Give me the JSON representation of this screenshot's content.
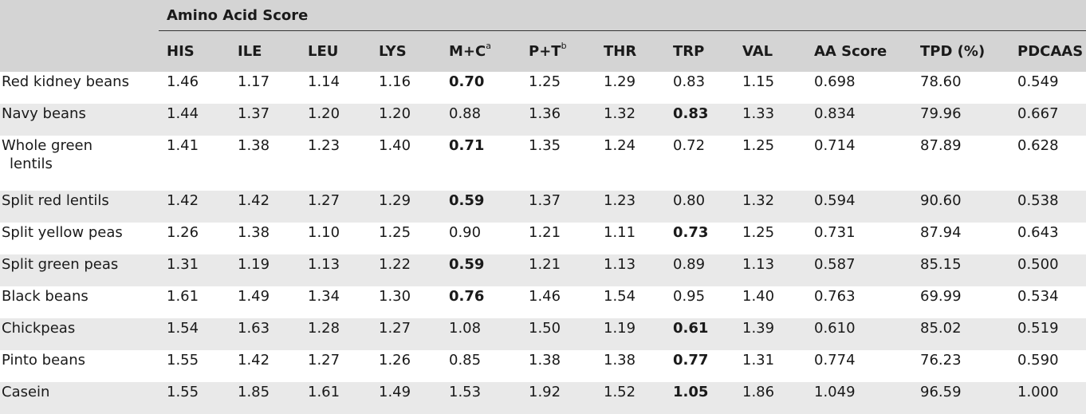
{
  "table": {
    "group_header": "Amino Acid Score",
    "columns": [
      {
        "label": "HIS",
        "sup": ""
      },
      {
        "label": "ILE",
        "sup": ""
      },
      {
        "label": "LEU",
        "sup": ""
      },
      {
        "label": "LYS",
        "sup": ""
      },
      {
        "label": "M+C",
        "sup": "a"
      },
      {
        "label": "P+T",
        "sup": "b"
      },
      {
        "label": "THR",
        "sup": ""
      },
      {
        "label": "TRP",
        "sup": ""
      },
      {
        "label": "VAL",
        "sup": ""
      },
      {
        "label": "AA Score",
        "sup": ""
      },
      {
        "label": "TPD (%)",
        "sup": ""
      },
      {
        "label": "PDCAAS",
        "sup": ""
      }
    ],
    "rows": [
      {
        "label": "Red kidney beans",
        "label2": "",
        "values": [
          "1.46",
          "1.17",
          "1.14",
          "1.16",
          "0.70",
          "1.25",
          "1.29",
          "0.83",
          "1.15",
          "0.698",
          "78.60",
          "0.549"
        ],
        "bold": [
          4
        ]
      },
      {
        "label": "Navy beans",
        "label2": "",
        "values": [
          "1.44",
          "1.37",
          "1.20",
          "1.20",
          "0.88",
          "1.36",
          "1.32",
          "0.83",
          "1.33",
          "0.834",
          "79.96",
          "0.667"
        ],
        "bold": [
          7
        ]
      },
      {
        "label": "Whole green",
        "label2": "lentils",
        "values": [
          "1.41",
          "1.38",
          "1.23",
          "1.40",
          "0.71",
          "1.35",
          "1.24",
          "0.72",
          "1.25",
          "0.714",
          "87.89",
          "0.628"
        ],
        "bold": [
          4
        ]
      },
      {
        "label": "Split red lentils",
        "label2": "",
        "values": [
          "1.42",
          "1.42",
          "1.27",
          "1.29",
          "0.59",
          "1.37",
          "1.23",
          "0.80",
          "1.32",
          "0.594",
          "90.60",
          "0.538"
        ],
        "bold": [
          4
        ]
      },
      {
        "label": "Split yellow peas",
        "label2": "",
        "values": [
          "1.26",
          "1.38",
          "1.10",
          "1.25",
          "0.90",
          "1.21",
          "1.11",
          "0.73",
          "1.25",
          "0.731",
          "87.94",
          "0.643"
        ],
        "bold": [
          7
        ]
      },
      {
        "label": "Split green peas",
        "label2": "",
        "values": [
          "1.31",
          "1.19",
          "1.13",
          "1.22",
          "0.59",
          "1.21",
          "1.13",
          "0.89",
          "1.13",
          "0.587",
          "85.15",
          "0.500"
        ],
        "bold": [
          4
        ]
      },
      {
        "label": "Black beans",
        "label2": "",
        "values": [
          "1.61",
          "1.49",
          "1.34",
          "1.30",
          "0.76",
          "1.46",
          "1.54",
          "0.95",
          "1.40",
          "0.763",
          "69.99",
          "0.534"
        ],
        "bold": [
          4
        ]
      },
      {
        "label": "Chickpeas",
        "label2": "",
        "values": [
          "1.54",
          "1.63",
          "1.28",
          "1.27",
          "1.08",
          "1.50",
          "1.19",
          "0.61",
          "1.39",
          "0.610",
          "85.02",
          "0.519"
        ],
        "bold": [
          7
        ]
      },
      {
        "label": "Pinto beans",
        "label2": "",
        "values": [
          "1.55",
          "1.42",
          "1.27",
          "1.26",
          "0.85",
          "1.38",
          "1.38",
          "0.77",
          "1.31",
          "0.774",
          "76.23",
          "0.590"
        ],
        "bold": [
          7
        ]
      },
      {
        "label": "Casein",
        "label2": "",
        "values": [
          "1.55",
          "1.85",
          "1.61",
          "1.49",
          "1.53",
          "1.92",
          "1.52",
          "1.05",
          "1.86",
          "1.049",
          "96.59",
          "1.000"
        ],
        "bold": [
          7
        ]
      }
    ]
  }
}
